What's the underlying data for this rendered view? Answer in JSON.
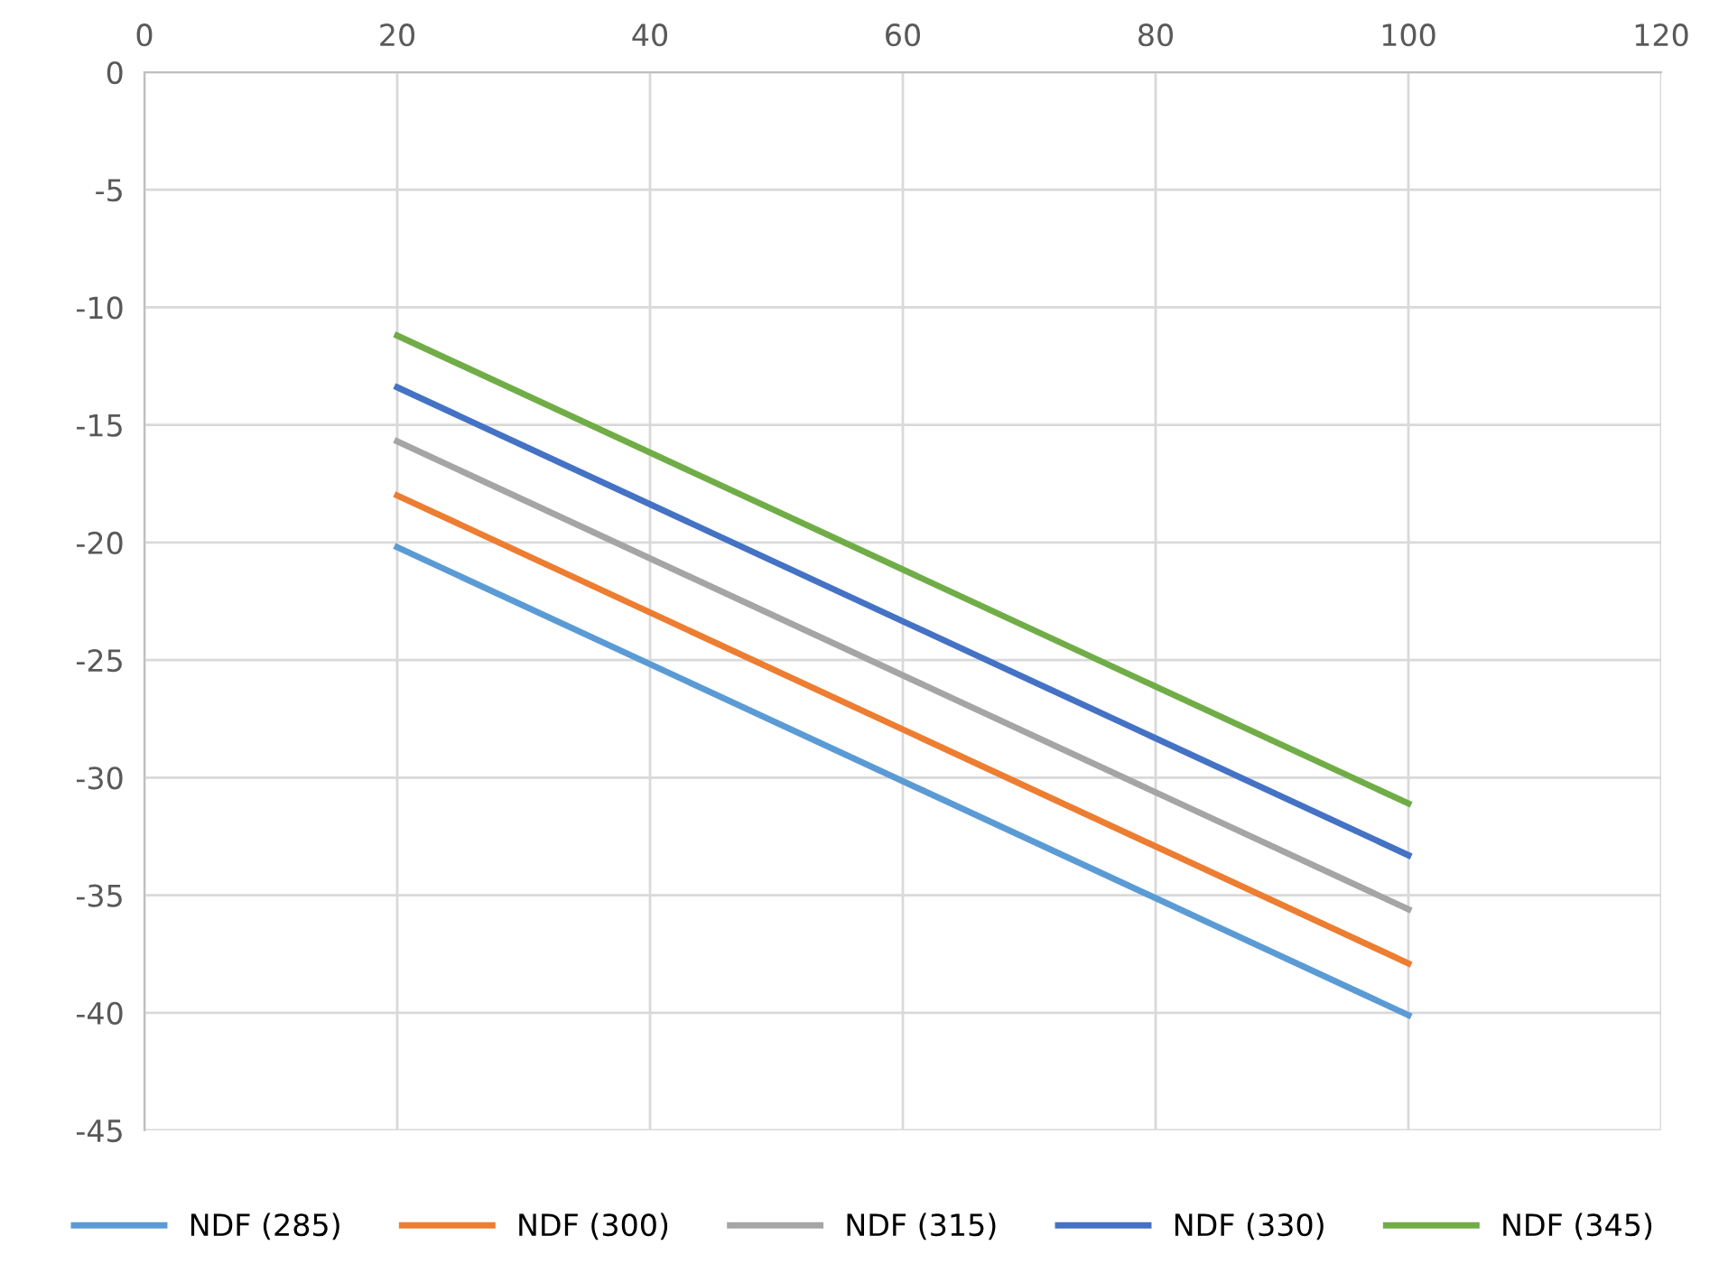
{
  "chart_data": {
    "type": "line",
    "x": [
      20,
      100
    ],
    "series": [
      {
        "name": "NDF (285)",
        "color": "#5b9bd5",
        "values": [
          -20.2,
          -40.1
        ]
      },
      {
        "name": "NDF (300)",
        "color": "#ed7d31",
        "values": [
          -18.0,
          -37.9
        ]
      },
      {
        "name": "NDF (315)",
        "color": "#a5a5a5",
        "values": [
          -15.7,
          -35.6
        ]
      },
      {
        "name": "NDF (330)",
        "color": "#4472c4",
        "values": [
          -13.4,
          -33.3
        ]
      },
      {
        "name": "NDF (345)",
        "color": "#70ad47",
        "values": [
          -11.2,
          -31.1
        ]
      }
    ],
    "xlim": [
      0,
      120
    ],
    "xticks": [
      0,
      20,
      40,
      60,
      80,
      100,
      120
    ],
    "ylim": [
      -45,
      0
    ],
    "yticks": [
      -45,
      -40,
      -35,
      -30,
      -25,
      -20,
      -15,
      -10,
      -5,
      0
    ],
    "grid": true,
    "legend": "bottom",
    "marker": "none",
    "line_style": "solid"
  }
}
